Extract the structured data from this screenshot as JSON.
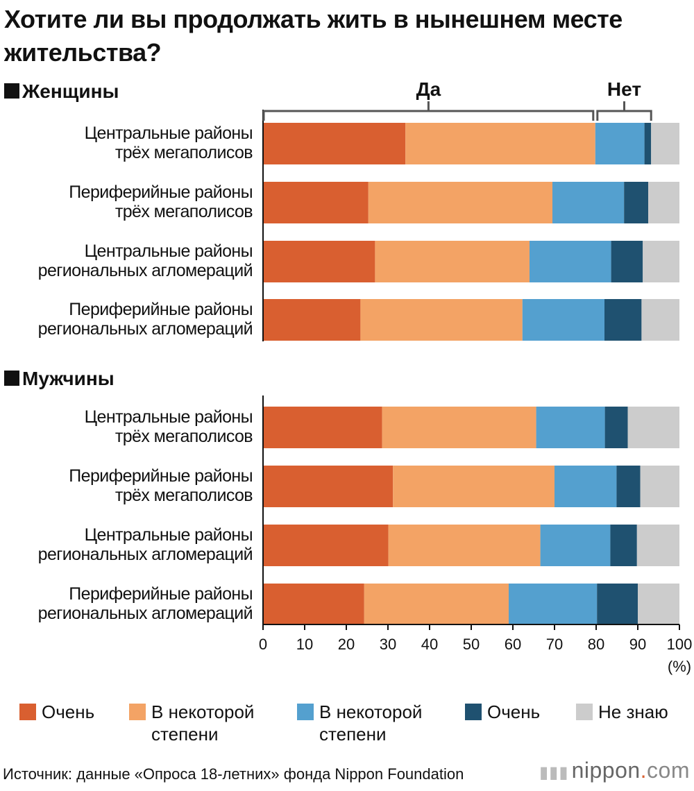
{
  "title": "Хотите ли вы продолжать жить в нынешнем месте жительства?",
  "sections": [
    {
      "label": "Женщины"
    },
    {
      "label": "Мужчины"
    }
  ],
  "groups": {
    "yes": "Да",
    "no": "Нет"
  },
  "axis": {
    "unit": "(%)"
  },
  "legend": [
    {
      "label": "Очень",
      "color": "#d95f30"
    },
    {
      "label": "В некоторой степени",
      "color": "#f3a365"
    },
    {
      "label": "В некоторой степени",
      "color": "#54a0cf"
    },
    {
      "label": "Очень",
      "color": "#1f5170"
    },
    {
      "label": "Не знаю",
      "color": "#cccccc"
    }
  ],
  "footer": {
    "source": "Источник: данные «Опроса 18-летних» фонда Nippon Foundation",
    "logo_main": "nippon",
    "logo_dot": ".",
    "logo_tld": "com"
  },
  "chart_data": {
    "type": "bar",
    "orientation": "horizontal",
    "stacked": true,
    "xlim": [
      0,
      100
    ],
    "xticks": [
      0,
      10,
      20,
      30,
      40,
      50,
      60,
      70,
      80,
      90,
      100
    ],
    "title": "Хотите ли вы продолжать жить в нынешнем месте жительства?",
    "groups": [
      {
        "name": "Женщины",
        "categories": [
          [
            "Центральные районы",
            "трёх мегаполисов"
          ],
          [
            "Периферийные районы",
            "трёх мегаполисов"
          ],
          [
            "Центральные районы",
            "региональных агломераций"
          ],
          [
            "Периферийные районы",
            "региональных агломераций"
          ]
        ],
        "rows": [
          [
            34.2,
            45.6,
            11.8,
            1.6,
            6.8
          ],
          [
            25.3,
            44.2,
            17.2,
            5.8,
            7.5
          ],
          [
            26.9,
            37.1,
            19.6,
            7.6,
            8.8
          ],
          [
            23.4,
            38.9,
            19.7,
            8.9,
            9.1
          ]
        ]
      },
      {
        "name": "Мужчины",
        "categories": [
          [
            "Центральные районы",
            "трёх мегаполисов"
          ],
          [
            "Периферийные районы",
            "трёх мегаполисов"
          ],
          [
            "Центральные районы",
            "региональных агломераций"
          ],
          [
            "Периферийные районы",
            "региональных агломераций"
          ]
        ],
        "rows": [
          [
            28.6,
            37.0,
            16.5,
            5.5,
            12.4
          ],
          [
            31.2,
            38.8,
            14.9,
            5.7,
            9.4
          ],
          [
            30.1,
            36.5,
            16.8,
            6.4,
            10.2
          ],
          [
            24.3,
            34.7,
            21.2,
            9.8,
            10.0
          ]
        ]
      }
    ],
    "series": [
      {
        "name": "Очень",
        "color": "#d95f30"
      },
      {
        "name": "В некоторой степени",
        "color": "#f3a365"
      },
      {
        "name": "В некоторой степени",
        "color": "#54a0cf"
      },
      {
        "name": "Очень",
        "color": "#1f5170"
      },
      {
        "name": "Не знаю",
        "color": "#cccccc"
      }
    ],
    "brackets": [
      {
        "label": "Да",
        "from": 0,
        "to": 79.8
      },
      {
        "label": "Нет",
        "from": 79.8,
        "to": 93.2
      }
    ]
  }
}
